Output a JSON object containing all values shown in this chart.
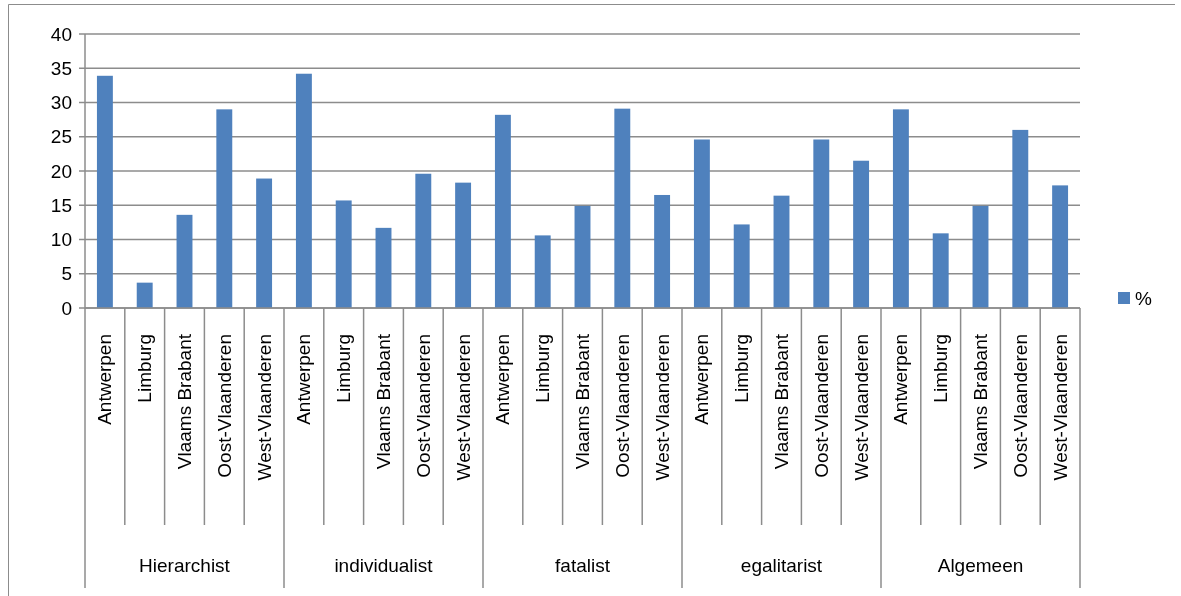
{
  "chart_data": {
    "type": "bar",
    "categories": [
      "Antwerpen",
      "Limburg",
      "Vlaams Brabant",
      "Oost-Vlaanderen",
      "West-Vlaanderen",
      "Antwerpen",
      "Limburg",
      "Vlaams Brabant",
      "Oost-Vlaanderen",
      "West-Vlaanderen",
      "Antwerpen",
      "Limburg",
      "Vlaams Brabant",
      "Oost-Vlaanderen",
      "West-Vlaanderen",
      "Antwerpen",
      "Limburg",
      "Vlaams Brabant",
      "Oost-Vlaanderen",
      "West-Vlaanderen",
      "Antwerpen",
      "Limburg",
      "Vlaams Brabant",
      "Oost-Vlaanderen",
      "West-Vlaanderen"
    ],
    "series": [
      {
        "name": "%",
        "color": "#4f81bd",
        "values": [
          33.9,
          3.7,
          13.6,
          29.0,
          18.9,
          34.2,
          15.7,
          11.7,
          19.6,
          18.3,
          28.2,
          10.6,
          14.9,
          29.1,
          16.5,
          24.6,
          12.2,
          16.4,
          24.6,
          21.5,
          29.0,
          10.9,
          14.9,
          26.0,
          17.9
        ]
      }
    ],
    "annotations": [
      "Hierarchist",
      "individualist",
      "fatalist",
      "egalitarist",
      "Algemeen"
    ],
    "ylim": [
      0,
      40
    ],
    "yticks": [
      0,
      5,
      10,
      15,
      20,
      25,
      30,
      35,
      40
    ],
    "grid": "y",
    "legend": "right"
  }
}
